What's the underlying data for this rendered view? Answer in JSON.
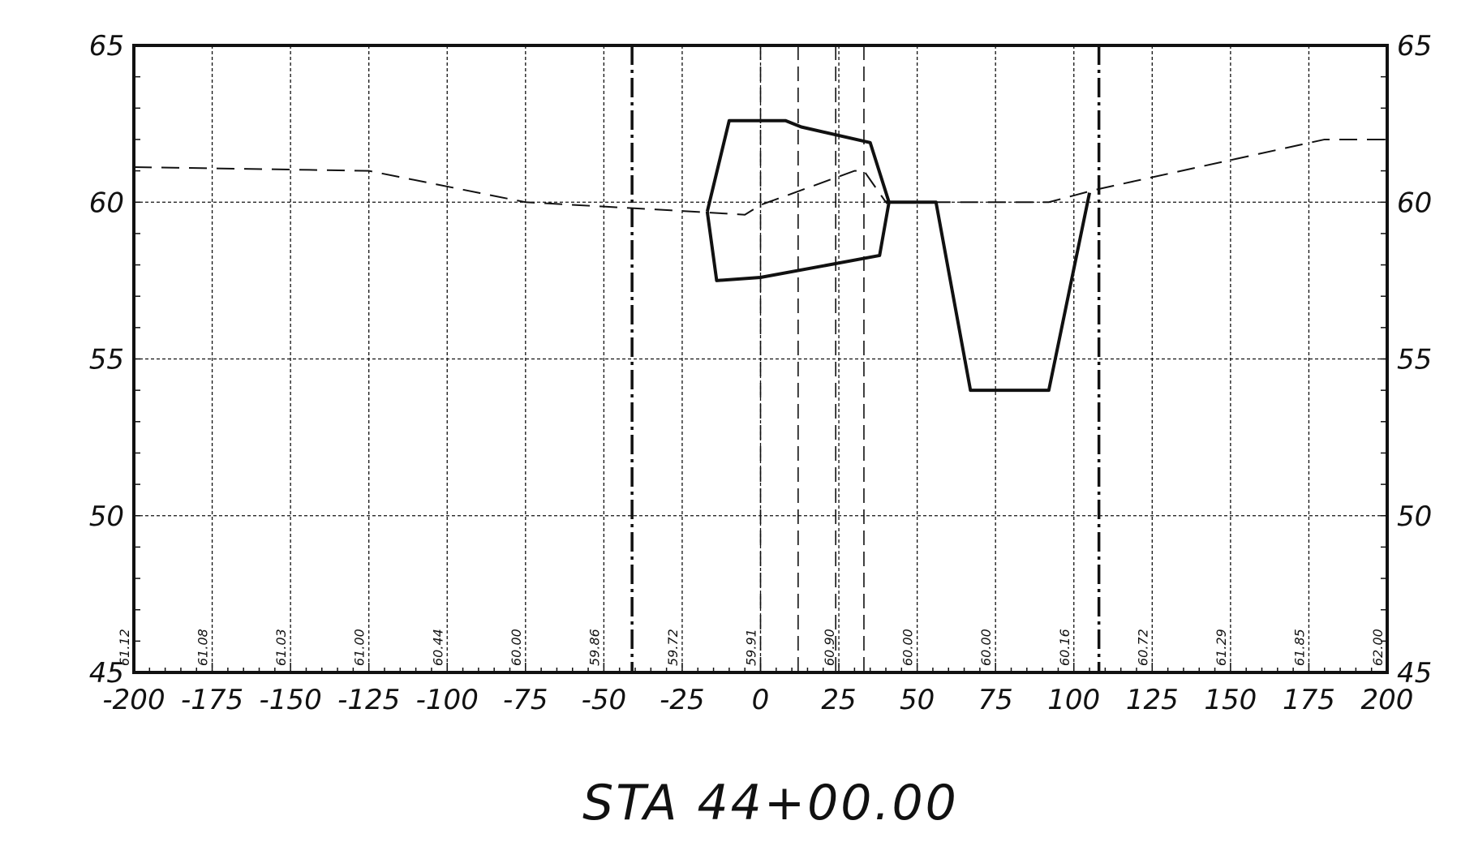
{
  "chart_data": {
    "type": "line",
    "title": "STA 44+00.00",
    "xlabel": "",
    "ylabel": "",
    "xlim": [
      -200,
      200
    ],
    "ylim": [
      45,
      65
    ],
    "x_ticks": [
      "-200",
      "-175",
      "-150",
      "-125",
      "-100",
      "-75",
      "-50",
      "-25",
      "0",
      "25",
      "50",
      "75",
      "100",
      "125",
      "150",
      "175",
      "200"
    ],
    "y_ticks": [
      "65",
      "60",
      "55",
      "50",
      "45"
    ],
    "grid": true,
    "elevation_labels": [
      {
        "x": -200,
        "text": "61.12"
      },
      {
        "x": -175,
        "text": "61.08"
      },
      {
        "x": -150,
        "text": "61.03"
      },
      {
        "x": -125,
        "text": "61.00"
      },
      {
        "x": -100,
        "text": "60.44"
      },
      {
        "x": -75,
        "text": "60.00"
      },
      {
        "x": -50,
        "text": "59.86"
      },
      {
        "x": -25,
        "text": "59.72"
      },
      {
        "x": 0,
        "text": "59.91"
      },
      {
        "x": 25,
        "text": "60.90"
      },
      {
        "x": 50,
        "text": "60.00"
      },
      {
        "x": 75,
        "text": "60.00"
      },
      {
        "x": 100,
        "text": "60.16"
      },
      {
        "x": 125,
        "text": "60.72"
      },
      {
        "x": 150,
        "text": "61.29"
      },
      {
        "x": 175,
        "text": "61.85"
      },
      {
        "x": 200,
        "text": "62.00"
      }
    ],
    "series": [
      {
        "style": "dashed",
        "points": [
          [
            -200,
            61.12
          ],
          [
            -175,
            61.08
          ],
          [
            -125,
            61.0
          ],
          [
            -75,
            60.0
          ],
          [
            -50,
            59.86
          ],
          [
            -25,
            59.72
          ],
          [
            -5,
            59.6
          ],
          [
            0,
            59.91
          ],
          [
            30,
            61.0
          ],
          [
            33,
            61.0
          ],
          [
            40,
            60.0
          ],
          [
            92,
            60.0
          ],
          [
            107,
            60.4
          ],
          [
            180,
            62.0
          ],
          [
            200,
            62.0
          ]
        ]
      },
      {
        "style": "solid",
        "points": [
          [
            -17,
            59.7
          ],
          [
            -10,
            62.6
          ],
          [
            -5,
            62.6
          ],
          [
            8,
            62.6
          ],
          [
            13,
            62.4
          ],
          [
            35,
            61.9
          ],
          [
            41,
            60.0
          ],
          [
            38,
            58.3
          ],
          [
            0,
            57.6
          ],
          [
            -14,
            57.5
          ],
          [
            -17,
            59.7
          ]
        ]
      },
      {
        "style": "solid",
        "points": [
          [
            40,
            60.0
          ],
          [
            56,
            60.0
          ],
          [
            67,
            54.0
          ],
          [
            92,
            54.0
          ],
          [
            105,
            60.3
          ]
        ]
      }
    ],
    "vertical_lines": [
      {
        "x": -41,
        "style": "dash-dot-heavy"
      },
      {
        "x": 108,
        "style": "dash-dot-heavy"
      },
      {
        "x": 0,
        "style": "dashed"
      },
      {
        "x": 12,
        "style": "dashed"
      },
      {
        "x": 24,
        "style": "dashed"
      },
      {
        "x": 33,
        "style": "dashed"
      }
    ]
  }
}
